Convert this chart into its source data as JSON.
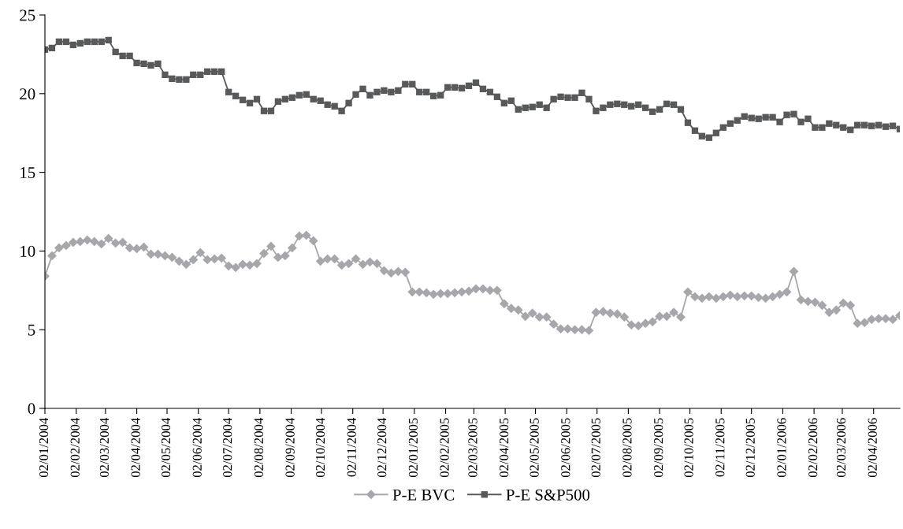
{
  "chart_data": {
    "type": "line",
    "x": [
      "2004-01-02",
      "2004-01-09",
      "2004-01-16",
      "2004-01-23",
      "2004-01-30",
      "2004-02-06",
      "2004-02-13",
      "2004-02-20",
      "2004-02-27",
      "2004-03-05",
      "2004-03-12",
      "2004-03-19",
      "2004-03-26",
      "2004-04-02",
      "2004-04-09",
      "2004-04-16",
      "2004-04-23",
      "2004-04-30",
      "2004-05-07",
      "2004-05-14",
      "2004-05-21",
      "2004-05-28",
      "2004-06-04",
      "2004-06-11",
      "2004-06-18",
      "2004-06-25",
      "2004-07-02",
      "2004-07-09",
      "2004-07-16",
      "2004-07-23",
      "2004-07-30",
      "2004-08-06",
      "2004-08-13",
      "2004-08-20",
      "2004-08-27",
      "2004-09-03",
      "2004-09-10",
      "2004-09-17",
      "2004-09-24",
      "2004-10-01",
      "2004-10-08",
      "2004-10-15",
      "2004-10-22",
      "2004-10-29",
      "2004-11-05",
      "2004-11-12",
      "2004-11-19",
      "2004-11-26",
      "2004-12-03",
      "2004-12-10",
      "2004-12-17",
      "2004-12-24",
      "2004-12-31",
      "2005-01-07",
      "2005-01-14",
      "2005-01-21",
      "2005-01-28",
      "2005-02-04",
      "2005-02-11",
      "2005-02-18",
      "2005-02-25",
      "2005-03-04",
      "2005-03-11",
      "2005-03-18",
      "2005-03-25",
      "2005-04-01",
      "2005-04-08",
      "2005-04-15",
      "2005-04-22",
      "2005-04-29",
      "2005-05-06",
      "2005-05-13",
      "2005-05-20",
      "2005-05-27",
      "2005-06-03",
      "2005-06-10",
      "2005-06-17",
      "2005-06-24",
      "2005-07-01",
      "2005-07-08",
      "2005-07-15",
      "2005-07-22",
      "2005-07-29",
      "2005-08-05",
      "2005-08-12",
      "2005-08-19",
      "2005-08-26",
      "2005-09-02",
      "2005-09-09",
      "2005-09-16",
      "2005-09-23",
      "2005-09-30",
      "2005-10-07",
      "2005-10-14",
      "2005-10-21",
      "2005-10-28",
      "2005-11-04",
      "2005-11-11",
      "2005-11-18",
      "2005-11-25",
      "2005-12-02",
      "2005-12-09",
      "2005-12-16",
      "2005-12-23",
      "2005-12-30",
      "2006-01-06",
      "2006-01-13",
      "2006-01-20",
      "2006-01-27",
      "2006-02-03",
      "2006-02-10",
      "2006-02-17",
      "2006-02-24",
      "2006-03-03",
      "2006-03-10",
      "2006-03-17",
      "2006-03-24",
      "2006-03-31",
      "2006-04-07",
      "2006-04-14",
      "2006-04-21",
      "2006-04-28"
    ],
    "series": [
      {
        "name": "P-E BVC",
        "color": "#a6a7ab",
        "marker": "diamond",
        "values": [
          8.4,
          9.7,
          10.2,
          10.35,
          10.55,
          10.6,
          10.7,
          10.6,
          10.45,
          10.8,
          10.5,
          10.55,
          10.2,
          10.15,
          10.25,
          9.8,
          9.8,
          9.7,
          9.6,
          9.35,
          9.15,
          9.45,
          9.9,
          9.45,
          9.5,
          9.55,
          9.05,
          8.95,
          9.15,
          9.1,
          9.2,
          9.85,
          10.3,
          9.6,
          9.7,
          10.2,
          10.95,
          11.0,
          10.65,
          9.35,
          9.5,
          9.5,
          9.1,
          9.2,
          9.5,
          9.15,
          9.3,
          9.2,
          8.75,
          8.6,
          8.7,
          8.65,
          7.4,
          7.4,
          7.35,
          7.25,
          7.3,
          7.3,
          7.35,
          7.4,
          7.45,
          7.6,
          7.6,
          7.5,
          7.5,
          6.65,
          6.35,
          6.25,
          5.85,
          6.05,
          5.8,
          5.8,
          5.35,
          5.05,
          5.05,
          5.0,
          5.0,
          4.95,
          6.1,
          6.15,
          6.05,
          6.0,
          5.8,
          5.3,
          5.25,
          5.4,
          5.5,
          5.85,
          5.85,
          6.1,
          5.8,
          7.4,
          7.1,
          7.0,
          7.1,
          7.0,
          7.1,
          7.2,
          7.1,
          7.15,
          7.15,
          7.05,
          7.0,
          7.1,
          7.25,
          7.4,
          8.7,
          6.9,
          6.8,
          6.75,
          6.55,
          6.1,
          6.25,
          6.7,
          6.55,
          5.4,
          5.45,
          5.65,
          5.7,
          5.7,
          5.65,
          5.9
        ]
      },
      {
        "name": "P-E S&P500",
        "color": "#58595b",
        "marker": "square",
        "values": [
          22.8,
          22.9,
          23.3,
          23.3,
          23.1,
          23.2,
          23.3,
          23.3,
          23.3,
          23.4,
          22.65,
          22.4,
          22.4,
          21.95,
          21.9,
          21.8,
          21.9,
          21.2,
          20.95,
          20.9,
          20.9,
          21.2,
          21.2,
          21.4,
          21.4,
          21.4,
          20.1,
          19.85,
          19.6,
          19.4,
          19.65,
          18.9,
          18.9,
          19.5,
          19.65,
          19.75,
          19.9,
          19.95,
          19.65,
          19.55,
          19.3,
          19.2,
          18.9,
          19.4,
          19.95,
          20.3,
          19.9,
          20.1,
          20.2,
          20.1,
          20.2,
          20.6,
          20.6,
          20.1,
          20.1,
          19.85,
          19.9,
          20.4,
          20.4,
          20.35,
          20.5,
          20.7,
          20.3,
          20.1,
          19.8,
          19.4,
          19.55,
          19.0,
          19.1,
          19.15,
          19.3,
          19.1,
          19.65,
          19.8,
          19.75,
          19.75,
          20.05,
          19.65,
          18.9,
          19.1,
          19.3,
          19.35,
          19.3,
          19.2,
          19.3,
          19.1,
          18.85,
          19.0,
          19.35,
          19.3,
          19.0,
          18.15,
          17.65,
          17.3,
          17.2,
          17.5,
          17.85,
          18.1,
          18.3,
          18.55,
          18.45,
          18.4,
          18.5,
          18.5,
          18.2,
          18.65,
          18.7,
          18.2,
          18.4,
          17.85,
          17.85,
          18.1,
          18.0,
          17.85,
          17.7,
          18.0,
          18.0,
          17.95,
          18.0,
          17.9,
          17.95,
          17.75
        ]
      }
    ],
    "xlim": [
      "2004-01-02",
      "2006-04-28"
    ],
    "xticks": [
      {
        "value": "2004-01-02",
        "label": "02/01/2004"
      },
      {
        "value": "2004-02-02",
        "label": "02/02/2004"
      },
      {
        "value": "2004-03-02",
        "label": "02/03/2004"
      },
      {
        "value": "2004-04-02",
        "label": "02/04/2004"
      },
      {
        "value": "2004-05-02",
        "label": "02/05/2004"
      },
      {
        "value": "2004-06-02",
        "label": "02/06/2004"
      },
      {
        "value": "2004-07-02",
        "label": "02/07/2004"
      },
      {
        "value": "2004-08-02",
        "label": "02/08/2004"
      },
      {
        "value": "2004-09-02",
        "label": "02/09/2004"
      },
      {
        "value": "2004-10-02",
        "label": "02/10/2004"
      },
      {
        "value": "2004-11-02",
        "label": "02/11/2004"
      },
      {
        "value": "2004-12-02",
        "label": "02/12/2004"
      },
      {
        "value": "2005-01-02",
        "label": "02/01/2005"
      },
      {
        "value": "2005-02-02",
        "label": "02/02/2005"
      },
      {
        "value": "2005-03-02",
        "label": "02/03/2005"
      },
      {
        "value": "2005-04-02",
        "label": "02/04/2005"
      },
      {
        "value": "2005-05-02",
        "label": "02/05/2005"
      },
      {
        "value": "2005-06-02",
        "label": "02/06/2005"
      },
      {
        "value": "2005-07-02",
        "label": "02/07/2005"
      },
      {
        "value": "2005-08-02",
        "label": "02/08/2005"
      },
      {
        "value": "2005-09-02",
        "label": "02/09/2005"
      },
      {
        "value": "2005-10-02",
        "label": "02/10/2005"
      },
      {
        "value": "2005-11-02",
        "label": "02/11/2005"
      },
      {
        "value": "2005-12-02",
        "label": "02/12/2005"
      },
      {
        "value": "2006-01-02",
        "label": "02/01/2006"
      },
      {
        "value": "2006-02-02",
        "label": "02/02/2006"
      },
      {
        "value": "2006-03-02",
        "label": "02/03/2006"
      },
      {
        "value": "2006-04-02",
        "label": "02/04/2006"
      }
    ],
    "ylim": [
      0,
      25
    ],
    "yticks": [
      0,
      5,
      10,
      15,
      20,
      25
    ],
    "legend": "bottom",
    "line_style": "solid"
  }
}
